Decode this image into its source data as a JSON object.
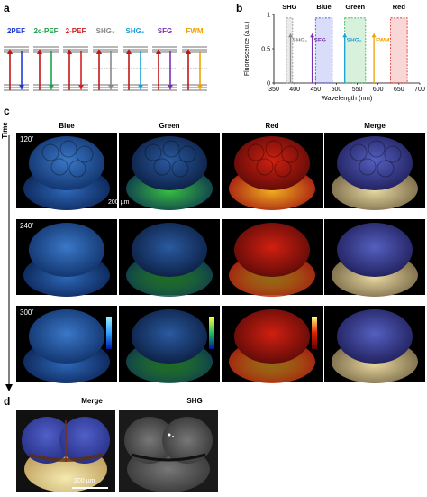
{
  "panel_a": {
    "letter": "a",
    "diagrams": [
      {
        "label": "2PEF",
        "color": "#1f3bd6"
      },
      {
        "label": "2c-PEF",
        "color": "#1aa34a"
      },
      {
        "label": "2-PEF",
        "color": "#d62020"
      },
      {
        "label": "SHG₁",
        "color": "#888888"
      },
      {
        "label": "SHG₂",
        "color": "#1aa0d6"
      },
      {
        "label": "SFG",
        "color": "#7b2fb5"
      },
      {
        "label": "FWM",
        "color": "#f0a000"
      }
    ]
  },
  "panel_b": {
    "letter": "b",
    "chart_data": {
      "type": "area",
      "title": "",
      "xlabel": "Wavelength (nm)",
      "ylabel": "Fluorescence (a.u.)",
      "xlim": [
        350,
        700
      ],
      "ylim": [
        0,
        1
      ],
      "xticks": [
        "350",
        "400",
        "450",
        "500",
        "550",
        "600",
        "650",
        "700"
      ],
      "yticks": [
        "0",
        "0.5",
        "1"
      ],
      "bands": [
        {
          "name": "SHG",
          "x0": 380,
          "x1": 395,
          "color": "#888888"
        },
        {
          "name": "Blue",
          "x0": 450,
          "x1": 490,
          "color": "#3040e0"
        },
        {
          "name": "Green",
          "x0": 520,
          "x1": 570,
          "color": "#20b040"
        },
        {
          "name": "Red",
          "x0": 630,
          "x1": 670,
          "color": "#e02020"
        }
      ],
      "lines": [
        {
          "name": "SHG₁",
          "x": 390,
          "color": "#888888"
        },
        {
          "name": "SFG",
          "x": 442,
          "color": "#7b2fb5"
        },
        {
          "name": "SHG₂",
          "x": 520,
          "color": "#1aa0d6"
        },
        {
          "name": "FWM",
          "x": 590,
          "color": "#f0a000"
        }
      ]
    }
  },
  "panel_c": {
    "letter": "c",
    "time_axis": "Time",
    "columns": [
      "Blue",
      "Green",
      "Red",
      "Merge"
    ],
    "rows": [
      "120′",
      "240′",
      "300′"
    ],
    "scale_bar": "200 µm"
  },
  "panel_d": {
    "letter": "d",
    "columns": [
      "Merge",
      "SHG"
    ],
    "scale_bar": "200 µm"
  }
}
